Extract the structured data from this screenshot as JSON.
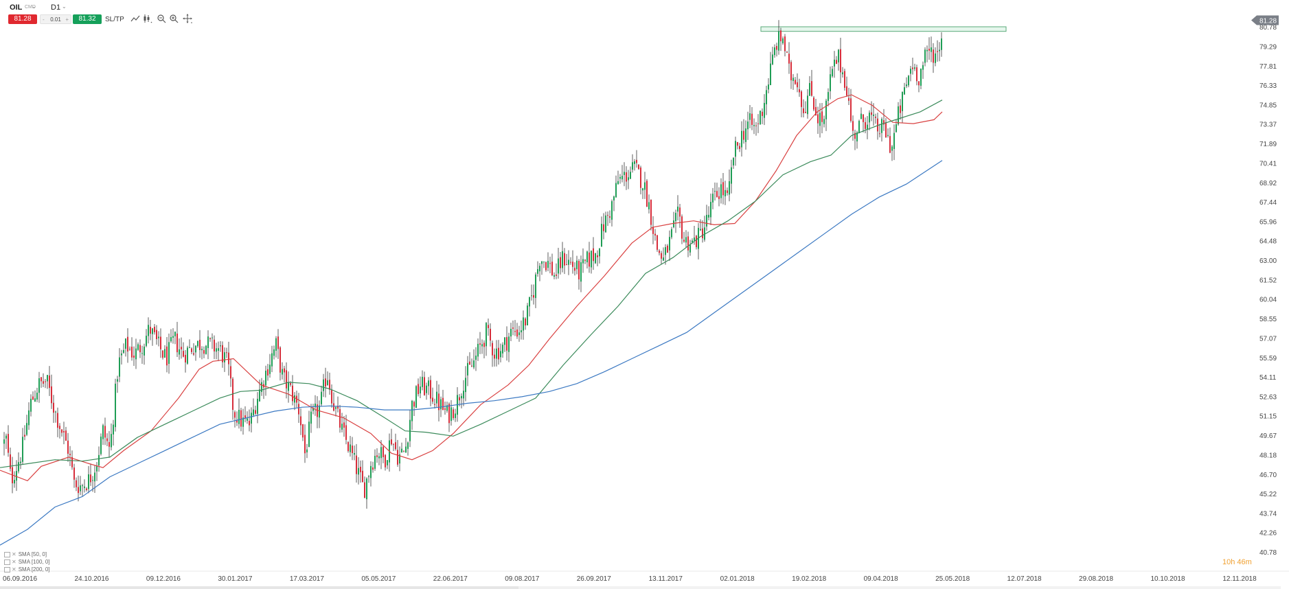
{
  "toolbar": {
    "symbol": "OIL",
    "symbol_type": "CMD",
    "timeframe": "D1",
    "sell_price": "81.28",
    "lot_size": "0.01",
    "lot_minus": "-",
    "lot_plus": "+",
    "buy_price": "81.32",
    "sltp_label": "SL/TP",
    "icons": [
      "line-chart-icon",
      "candles-icon",
      "zoom-out-icon",
      "zoom-in-icon",
      "crosshair-icon"
    ]
  },
  "clock": {
    "hours": "10h",
    "minutes": "46m"
  },
  "indicators": [
    {
      "label": "SMA [50, 0]",
      "color": "#d94040"
    },
    {
      "label": "SMA [100, 0]",
      "color": "#3a8a5a"
    },
    {
      "label": "SMA [200, 0]",
      "color": "#3a78c2"
    }
  ],
  "chart_data": {
    "type": "candlestick",
    "title": "",
    "xlabel": "",
    "ylabel": "",
    "ylim": [
      40.78,
      82.0
    ],
    "current_price": 81.28,
    "current_price_label": "81.28",
    "y_ticks": [
      "80.78",
      "79.29",
      "77.81",
      "76.33",
      "74.85",
      "73.37",
      "71.89",
      "70.41",
      "68.92",
      "67.44",
      "65.96",
      "64.48",
      "63.00",
      "61.52",
      "60.04",
      "58.55",
      "57.07",
      "55.59",
      "54.11",
      "52.63",
      "51.15",
      "49.67",
      "48.18",
      "46.70",
      "45.22",
      "43.74",
      "42.26",
      "40.78"
    ],
    "x_ticks": [
      "06.09.2016",
      "24.10.2016",
      "09.12.2016",
      "30.01.2017",
      "17.03.2017",
      "05.05.2017",
      "22.06.2017",
      "09.08.2017",
      "26.09.2017",
      "13.11.2017",
      "02.01.2018",
      "19.02.2018",
      "09.04.2018",
      "25.05.2018",
      "12.07.2018",
      "29.08.2018",
      "10.10.2018",
      "12.11.2018"
    ],
    "path_points": [
      [
        0,
        47.0
      ],
      [
        8,
        49.8
      ],
      [
        16,
        46.2
      ],
      [
        24,
        47.3
      ],
      [
        32,
        48.5
      ],
      [
        44,
        52.0
      ],
      [
        56,
        53.5
      ],
      [
        68,
        53.8
      ],
      [
        80,
        51.5
      ],
      [
        90,
        50.0
      ],
      [
        100,
        48.5
      ],
      [
        108,
        46.0
      ],
      [
        118,
        45.8
      ],
      [
        130,
        46.3
      ],
      [
        140,
        47.5
      ],
      [
        150,
        50.0
      ],
      [
        160,
        48.5
      ],
      [
        172,
        55.0
      ],
      [
        184,
        56.5
      ],
      [
        196,
        55.8
      ],
      [
        208,
        56.7
      ],
      [
        218,
        57.8
      ],
      [
        230,
        56.5
      ],
      [
        242,
        55.5
      ],
      [
        254,
        57.0
      ],
      [
        266,
        55.8
      ],
      [
        280,
        56.4
      ],
      [
        294,
        56.7
      ],
      [
        306,
        56.5
      ],
      [
        320,
        56.2
      ],
      [
        332,
        55.0
      ],
      [
        340,
        51.5
      ],
      [
        352,
        50.7
      ],
      [
        364,
        50.5
      ],
      [
        374,
        52.5
      ],
      [
        384,
        54.0
      ],
      [
        394,
        55.5
      ],
      [
        402,
        56.5
      ],
      [
        412,
        54.0
      ],
      [
        424,
        53.0
      ],
      [
        436,
        51.5
      ],
      [
        444,
        48.3
      ],
      [
        454,
        51.0
      ],
      [
        466,
        51.8
      ],
      [
        476,
        54.5
      ],
      [
        486,
        52.0
      ],
      [
        498,
        50.0
      ],
      [
        510,
        48.5
      ],
      [
        520,
        47.0
      ],
      [
        530,
        45.5
      ],
      [
        540,
        47.5
      ],
      [
        550,
        48.5
      ],
      [
        560,
        47.8
      ],
      [
        570,
        49.5
      ],
      [
        580,
        48.0
      ],
      [
        590,
        48.5
      ],
      [
        600,
        52.0
      ],
      [
        612,
        53.5
      ],
      [
        626,
        53.0
      ],
      [
        640,
        52.0
      ],
      [
        652,
        51.2
      ],
      [
        664,
        52.0
      ],
      [
        676,
        54.0
      ],
      [
        688,
        55.0
      ],
      [
        700,
        56.5
      ],
      [
        708,
        57.5
      ],
      [
        720,
        56.0
      ],
      [
        732,
        56.3
      ],
      [
        744,
        57.5
      ],
      [
        756,
        57.7
      ],
      [
        766,
        58.5
      ],
      [
        776,
        60.5
      ],
      [
        786,
        63.2
      ],
      [
        798,
        62.8
      ],
      [
        808,
        61.8
      ],
      [
        820,
        63.2
      ],
      [
        832,
        62.7
      ],
      [
        844,
        62.0
      ],
      [
        856,
        63.0
      ],
      [
        868,
        63.5
      ],
      [
        878,
        65.5
      ],
      [
        890,
        67.0
      ],
      [
        900,
        69.0
      ],
      [
        912,
        69.5
      ],
      [
        924,
        70.0
      ],
      [
        936,
        69.0
      ],
      [
        946,
        67.0
      ],
      [
        956,
        64.0
      ],
      [
        966,
        63.0
      ],
      [
        976,
        64.5
      ],
      [
        988,
        66.5
      ],
      [
        996,
        64.5
      ],
      [
        1008,
        64.3
      ],
      [
        1018,
        64.8
      ],
      [
        1028,
        65.8
      ],
      [
        1038,
        67.5
      ],
      [
        1050,
        68.5
      ],
      [
        1060,
        67.5
      ],
      [
        1068,
        71.0
      ],
      [
        1080,
        72.5
      ],
      [
        1090,
        73.5
      ],
      [
        1100,
        73.0
      ],
      [
        1110,
        74.5
      ],
      [
        1120,
        77.0
      ],
      [
        1130,
        79.5
      ],
      [
        1140,
        80.0
      ],
      [
        1150,
        77.0
      ],
      [
        1160,
        77.0
      ],
      [
        1170,
        74.5
      ],
      [
        1180,
        76.0
      ],
      [
        1190,
        74.0
      ],
      [
        1200,
        73.5
      ],
      [
        1210,
        77.0
      ],
      [
        1220,
        78.5
      ],
      [
        1232,
        76.5
      ],
      [
        1242,
        72.5
      ],
      [
        1254,
        73.5
      ],
      [
        1266,
        74.0
      ],
      [
        1276,
        73.0
      ],
      [
        1288,
        73.0
      ],
      [
        1298,
        71.5
      ],
      [
        1308,
        74.0
      ],
      [
        1318,
        76.0
      ],
      [
        1328,
        78.0
      ],
      [
        1338,
        77.0
      ],
      [
        1348,
        78.5
      ],
      [
        1356,
        79.0
      ],
      [
        1364,
        78.5
      ],
      [
        1372,
        80.5
      ],
      [
        1375,
        81.28
      ]
    ],
    "series": [
      {
        "name": "SMA [50, 0]",
        "points": [
          [
            0,
            47.0
          ],
          [
            40,
            46.2
          ],
          [
            60,
            47.3
          ],
          [
            100,
            48.0
          ],
          [
            130,
            47.5
          ],
          [
            150,
            47.2
          ],
          [
            180,
            48.5
          ],
          [
            220,
            50.0
          ],
          [
            260,
            52.5
          ],
          [
            290,
            54.7
          ],
          [
            310,
            55.3
          ],
          [
            340,
            55.5
          ],
          [
            380,
            53.5
          ],
          [
            420,
            52.8
          ],
          [
            460,
            51.6
          ],
          [
            500,
            51.0
          ],
          [
            540,
            49.8
          ],
          [
            570,
            48.3
          ],
          [
            600,
            47.8
          ],
          [
            630,
            48.5
          ],
          [
            660,
            49.8
          ],
          [
            700,
            52.0
          ],
          [
            740,
            53.5
          ],
          [
            770,
            55.0
          ],
          [
            800,
            57.0
          ],
          [
            840,
            59.5
          ],
          [
            880,
            61.8
          ],
          [
            920,
            64.3
          ],
          [
            950,
            65.5
          ],
          [
            980,
            65.8
          ],
          [
            1010,
            66.0
          ],
          [
            1040,
            65.7
          ],
          [
            1070,
            65.8
          ],
          [
            1100,
            67.5
          ],
          [
            1130,
            69.8
          ],
          [
            1160,
            72.5
          ],
          [
            1190,
            74.3
          ],
          [
            1220,
            75.3
          ],
          [
            1240,
            75.6
          ],
          [
            1270,
            74.8
          ],
          [
            1300,
            73.5
          ],
          [
            1330,
            73.4
          ],
          [
            1360,
            73.7
          ],
          [
            1372,
            74.3
          ]
        ]
      },
      {
        "name": "SMA [100, 0]",
        "points": [
          [
            0,
            47.2
          ],
          [
            40,
            47.5
          ],
          [
            80,
            47.8
          ],
          [
            120,
            47.7
          ],
          [
            160,
            48.0
          ],
          [
            200,
            49.5
          ],
          [
            240,
            50.5
          ],
          [
            280,
            51.5
          ],
          [
            320,
            52.5
          ],
          [
            350,
            53.0
          ],
          [
            380,
            53.1
          ],
          [
            420,
            53.7
          ],
          [
            450,
            53.6
          ],
          [
            480,
            53.2
          ],
          [
            520,
            52.3
          ],
          [
            560,
            51.0
          ],
          [
            590,
            50.0
          ],
          [
            620,
            49.9
          ],
          [
            660,
            49.6
          ],
          [
            700,
            50.5
          ],
          [
            740,
            51.5
          ],
          [
            780,
            52.5
          ],
          [
            820,
            55.0
          ],
          [
            860,
            57.3
          ],
          [
            900,
            59.5
          ],
          [
            940,
            62.0
          ],
          [
            980,
            63.2
          ],
          [
            1020,
            64.8
          ],
          [
            1060,
            66.0
          ],
          [
            1100,
            67.5
          ],
          [
            1140,
            69.5
          ],
          [
            1180,
            70.5
          ],
          [
            1210,
            71.0
          ],
          [
            1240,
            72.5
          ],
          [
            1280,
            73.3
          ],
          [
            1310,
            73.8
          ],
          [
            1340,
            74.3
          ],
          [
            1372,
            75.2
          ]
        ]
      },
      {
        "name": "SMA [200, 0]",
        "points": [
          [
            0,
            41.3
          ],
          [
            40,
            42.5
          ],
          [
            80,
            44.2
          ],
          [
            120,
            45.0
          ],
          [
            160,
            46.5
          ],
          [
            200,
            47.5
          ],
          [
            240,
            48.5
          ],
          [
            280,
            49.5
          ],
          [
            320,
            50.5
          ],
          [
            360,
            51.0
          ],
          [
            400,
            51.5
          ],
          [
            440,
            51.8
          ],
          [
            480,
            51.9
          ],
          [
            520,
            51.8
          ],
          [
            560,
            51.6
          ],
          [
            600,
            51.6
          ],
          [
            640,
            51.8
          ],
          [
            680,
            52.1
          ],
          [
            720,
            52.3
          ],
          [
            760,
            52.6
          ],
          [
            800,
            53.0
          ],
          [
            840,
            53.6
          ],
          [
            880,
            54.5
          ],
          [
            920,
            55.5
          ],
          [
            960,
            56.5
          ],
          [
            1000,
            57.5
          ],
          [
            1040,
            59.0
          ],
          [
            1080,
            60.5
          ],
          [
            1120,
            62.0
          ],
          [
            1160,
            63.5
          ],
          [
            1200,
            65.0
          ],
          [
            1240,
            66.5
          ],
          [
            1280,
            67.8
          ],
          [
            1320,
            68.8
          ],
          [
            1372,
            70.6
          ]
        ]
      }
    ],
    "resistance_zone": {
      "x_start": 1108,
      "x_end": 1465,
      "y_low": 80.43,
      "y_high": 80.78
    }
  }
}
